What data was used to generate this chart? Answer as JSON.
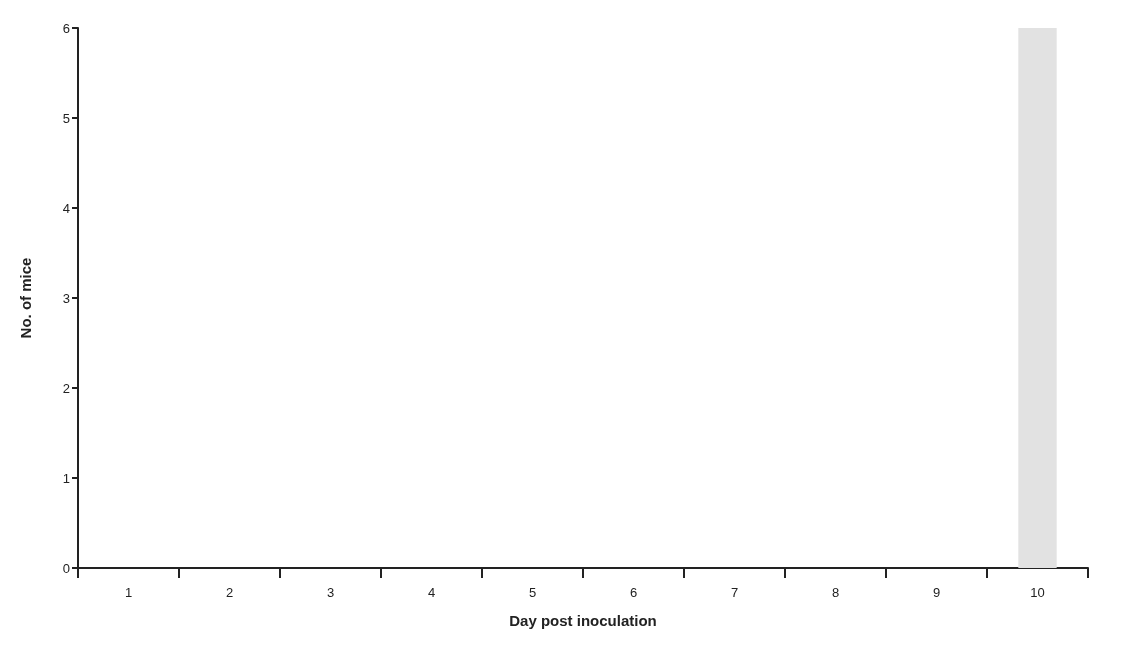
{
  "chart_data": {
    "type": "bar",
    "xlabel": "Day post inoculation",
    "ylabel": "No. of mice",
    "categories": [
      "1",
      "2",
      "3",
      "4",
      "5",
      "6",
      "7",
      "8",
      "9",
      "10"
    ],
    "values": [
      0,
      0,
      0,
      0,
      0,
      0,
      0,
      0,
      0,
      6
    ],
    "color": "#e2e2e2",
    "ylim": [
      0,
      6
    ],
    "yticks": [
      0,
      1,
      2,
      3,
      4,
      5,
      6
    ],
    "grid": false
  }
}
